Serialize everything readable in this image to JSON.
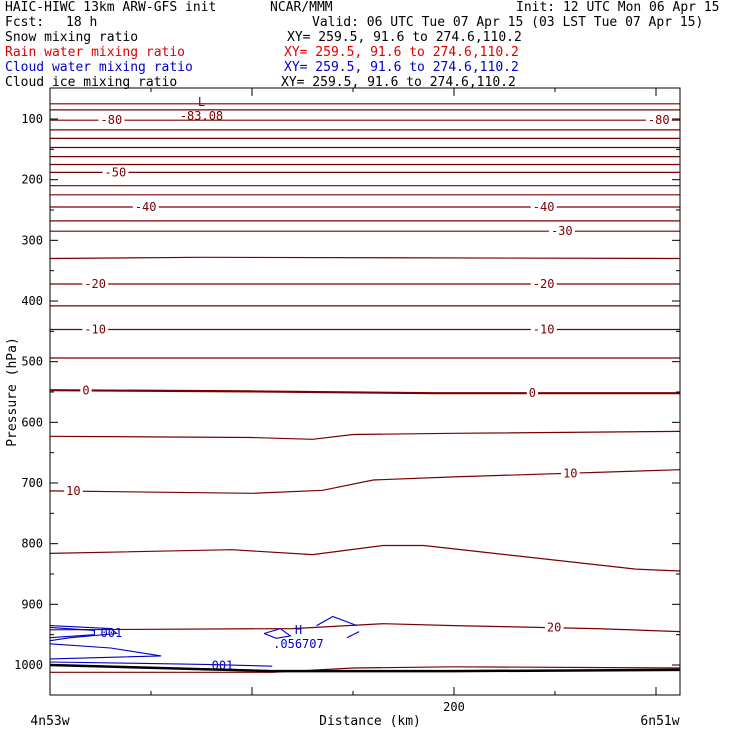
{
  "header": {
    "model": "HAIC-HIWC 13km ARW-GFS init",
    "org": "NCAR/MMM",
    "init": "Init: 12 UTC Mon 06 Apr 15",
    "fcst_label": "Fcst:",
    "fcst_value": "18 h",
    "valid": "Valid: 06 UTC Tue 07 Apr 15 (03 LST Tue 07 Apr 15)"
  },
  "fields": [
    {
      "name": "Snow mixing ratio",
      "xy": "XY= 259.5, 91.6 to 274.6,110.2",
      "color": "#000000"
    },
    {
      "name": "Rain water mixing ratio",
      "xy": "XY= 259.5, 91.6 to 274.6,110.2",
      "color": "#e00000"
    },
    {
      "name": "Cloud water mixing ratio",
      "xy": "XY= 259.5, 91.6 to 274.6,110.2",
      "color": "#0000c8"
    },
    {
      "name": "Cloud ice mixing ratio",
      "xy": "XY= 259.5, 91.6 to 274.6,110.2",
      "color": "#000000"
    }
  ],
  "colors": {
    "temperature": "#7a0000",
    "cloud_water": "#0000c8",
    "axis": "#000000"
  },
  "chart_data": {
    "type": "contour",
    "ylabel": "Pressure (hPa)",
    "xlabel": "Distance (km)",
    "left_label": "4n53w",
    "right_label": "6n51w",
    "ylim": [
      1045,
      55
    ],
    "xlim": [
      0,
      312
    ],
    "y_ticks": [
      100,
      200,
      300,
      400,
      500,
      600,
      700,
      800,
      900,
      1000
    ],
    "x_ticks": [
      200
    ],
    "temperature_contours": [
      {
        "pts": [
          [
            0,
            75
          ],
          [
            312,
            75
          ]
        ]
      },
      {
        "pts": [
          [
            0,
            85
          ],
          [
            312,
            85
          ]
        ]
      },
      {
        "pts": [
          [
            0,
            102
          ],
          [
            312,
            102
          ]
        ],
        "labels": [
          {
            "x": 25,
            "text": "-80"
          },
          {
            "x": 296,
            "text": "-80"
          }
        ]
      },
      {
        "pts": [
          [
            0,
            118
          ],
          [
            312,
            118
          ]
        ]
      },
      {
        "pts": [
          [
            0,
            132
          ],
          [
            312,
            132
          ]
        ]
      },
      {
        "pts": [
          [
            0,
            147
          ],
          [
            312,
            147
          ]
        ]
      },
      {
        "pts": [
          [
            0,
            162
          ],
          [
            312,
            162
          ]
        ]
      },
      {
        "pts": [
          [
            0,
            175
          ],
          [
            312,
            175
          ]
        ]
      },
      {
        "pts": [
          [
            0,
            188
          ],
          [
            312,
            188
          ]
        ],
        "labels": [
          {
            "x": 27,
            "text": "-50"
          }
        ]
      },
      {
        "pts": [
          [
            0,
            210
          ],
          [
            312,
            210
          ]
        ]
      },
      {
        "pts": [
          [
            0,
            225
          ],
          [
            312,
            225
          ]
        ]
      },
      {
        "pts": [
          [
            0,
            245
          ],
          [
            312,
            245
          ]
        ],
        "labels": [
          {
            "x": 42,
            "text": "-40"
          },
          {
            "x": 239,
            "text": "-40"
          }
        ]
      },
      {
        "pts": [
          [
            0,
            268
          ],
          [
            312,
            268
          ]
        ]
      },
      {
        "pts": [
          [
            0,
            285
          ],
          [
            312,
            285
          ]
        ],
        "labels": [
          {
            "x": 248,
            "text": "-30"
          }
        ]
      },
      {
        "pts": [
          [
            0,
            330
          ],
          [
            75,
            328
          ],
          [
            312,
            330
          ]
        ]
      },
      {
        "pts": [
          [
            0,
            372
          ],
          [
            312,
            372
          ]
        ],
        "labels": [
          {
            "x": 17,
            "text": "-20"
          },
          {
            "x": 239,
            "text": "-20"
          }
        ]
      },
      {
        "pts": [
          [
            0,
            408
          ],
          [
            312,
            408
          ]
        ]
      },
      {
        "pts": [
          [
            0,
            447
          ],
          [
            312,
            447
          ]
        ],
        "labels": [
          {
            "x": 17,
            "text": "-10"
          },
          {
            "x": 239,
            "text": "-10"
          }
        ]
      },
      {
        "pts": [
          [
            0,
            494
          ],
          [
            312,
            494
          ]
        ]
      },
      {
        "pts": [
          [
            0,
            547
          ],
          [
            100,
            549
          ],
          [
            190,
            552
          ],
          [
            312,
            552
          ]
        ],
        "labels": [
          {
            "x": 16,
            "text": "0"
          },
          {
            "x": 237,
            "text": "0"
          }
        ]
      },
      {
        "pts": [
          [
            0,
            623
          ],
          [
            100,
            625
          ],
          [
            130,
            628
          ],
          [
            150,
            620
          ],
          [
            200,
            618
          ],
          [
            312,
            615
          ]
        ]
      },
      {
        "pts": [
          [
            0,
            713
          ],
          [
            100,
            717
          ],
          [
            135,
            712
          ],
          [
            160,
            695
          ],
          [
            200,
            690
          ],
          [
            312,
            678
          ]
        ],
        "labels": [
          {
            "x": 8,
            "text": "10"
          },
          {
            "x": 254,
            "text": "10"
          }
        ]
      },
      {
        "pts": [
          [
            0,
            816
          ],
          [
            90,
            810
          ],
          [
            130,
            818
          ],
          [
            165,
            803
          ],
          [
            185,
            803
          ],
          [
            290,
            842
          ],
          [
            312,
            845
          ]
        ]
      },
      {
        "pts": [
          [
            0,
            942
          ],
          [
            120,
            940
          ],
          [
            165,
            932
          ],
          [
            200,
            935
          ],
          [
            270,
            940
          ],
          [
            312,
            945
          ]
        ],
        "labels": [
          {
            "x": 246,
            "text": "20"
          }
        ]
      },
      {
        "pts": [
          [
            0,
            1012
          ],
          [
            110,
            1012
          ],
          [
            150,
            1005
          ],
          [
            200,
            1003
          ],
          [
            312,
            1005
          ]
        ]
      }
    ],
    "cloud_water_contours": [
      {
        "pts": [
          [
            0,
            935
          ],
          [
            30,
            940
          ],
          [
            33,
            948
          ],
          [
            10,
            955
          ],
          [
            0,
            960
          ]
        ]
      },
      {
        "pts": [
          [
            0,
            938
          ],
          [
            22,
            943
          ],
          [
            22,
            950
          ],
          [
            0,
            955
          ]
        ]
      },
      {
        "pts": [
          [
            0,
            965
          ],
          [
            30,
            972
          ],
          [
            55,
            985
          ],
          [
            0,
            990
          ]
        ]
      },
      {
        "pts": [
          [
            0,
            995
          ],
          [
            40,
            997
          ],
          [
            77,
            999
          ],
          [
            110,
            1002
          ]
        ]
      },
      {
        "pts": [
          [
            106,
            948
          ],
          [
            114,
            940
          ],
          [
            119,
            952
          ],
          [
            112,
            956
          ],
          [
            106,
            948
          ]
        ]
      },
      {
        "pts": [
          [
            132,
            935
          ],
          [
            140,
            920
          ],
          [
            152,
            935
          ]
        ]
      },
      {
        "pts": [
          [
            147,
            955
          ],
          [
            153,
            945
          ]
        ]
      }
    ],
    "cloud_water_labels": [
      {
        "x": 25,
        "y": 947,
        "text": "001"
      },
      {
        "x": 80,
        "y": 1001,
        "text": "001"
      }
    ],
    "extrema": [
      {
        "kind": "L",
        "x": 75,
        "y": 72,
        "value": "-83.08",
        "color": "#7a0000"
      },
      {
        "kind": "H",
        "x": 123,
        "y": 942,
        "value": ".056707",
        "color": "#0000c8"
      }
    ],
    "terrain": [
      [
        0,
        1000
      ],
      [
        110,
        1010
      ],
      [
        200,
        1010
      ],
      [
        312,
        1008
      ]
    ]
  }
}
